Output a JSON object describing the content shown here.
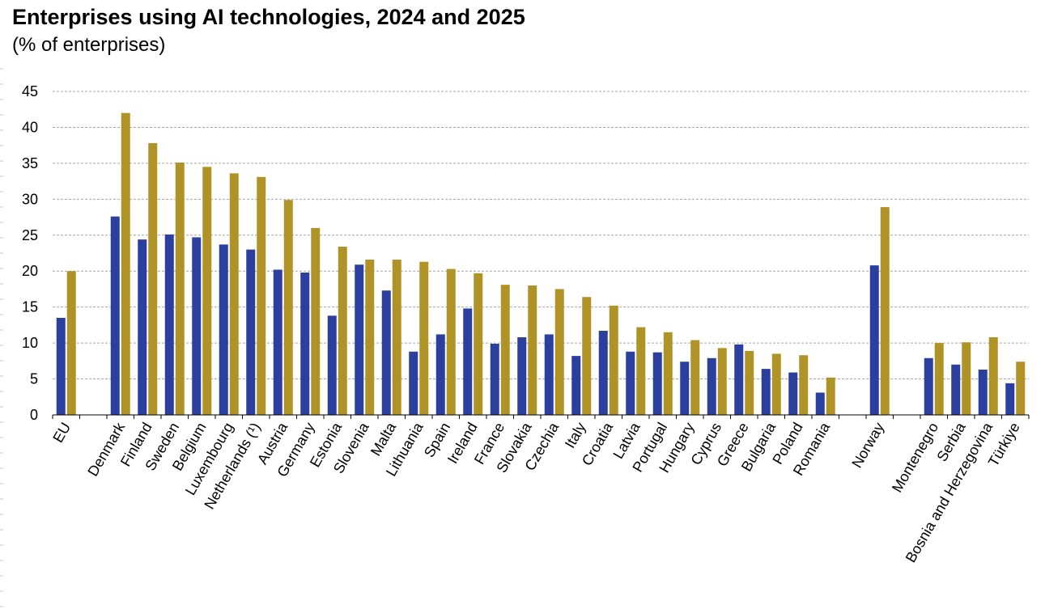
{
  "chart_data": {
    "type": "bar",
    "title": "Enterprises using AI technologies, 2024 and 2025",
    "subtitle": "(% of enterprises)",
    "xlabel": "",
    "ylabel": "",
    "ylim": [
      0,
      45
    ],
    "yticks": [
      0,
      5,
      10,
      15,
      20,
      25,
      30,
      35,
      40,
      45
    ],
    "grid": true,
    "legend": "none",
    "categories": [
      "EU",
      "",
      "Denmark",
      "Finland",
      "Sweden",
      "Belgium",
      "Luxembourg",
      "Netherlands (¹)",
      "Austria",
      "Germany",
      "Estonia",
      "Slovenia",
      "Malta",
      "Lithuania",
      "Spain",
      "Ireland",
      "France",
      "Slovakia",
      "Czechia",
      "Italy",
      "Croatia",
      "Latvia",
      "Portugal",
      "Hungary",
      "Cyprus",
      "Greece",
      "Bulgaria",
      "Poland",
      "Romania",
      "",
      "Norway",
      "",
      "Montenegro",
      "Serbia",
      "Bosnia and Herzegovina",
      "Türkiye"
    ],
    "series": [
      {
        "color": "#2a3f9e",
        "values": [
          13.5,
          null,
          27.6,
          24.4,
          25.1,
          24.7,
          23.7,
          23.0,
          20.2,
          19.8,
          13.8,
          20.9,
          17.3,
          8.8,
          11.2,
          14.8,
          9.9,
          10.8,
          11.2,
          8.2,
          11.7,
          8.8,
          8.7,
          7.4,
          7.9,
          9.8,
          6.4,
          5.9,
          3.1,
          null,
          20.8,
          null,
          7.9,
          7.0,
          6.3,
          4.4
        ]
      },
      {
        "color": "#b09327",
        "values": [
          20.0,
          null,
          42.0,
          37.8,
          35.1,
          34.5,
          33.6,
          33.1,
          29.9,
          26.0,
          23.4,
          21.6,
          21.6,
          21.3,
          20.3,
          19.7,
          18.1,
          18.0,
          17.5,
          16.4,
          15.2,
          12.2,
          11.5,
          10.4,
          9.3,
          8.9,
          8.5,
          8.3,
          5.2,
          null,
          28.9,
          null,
          10.0,
          10.1,
          10.8,
          7.4
        ]
      }
    ]
  }
}
